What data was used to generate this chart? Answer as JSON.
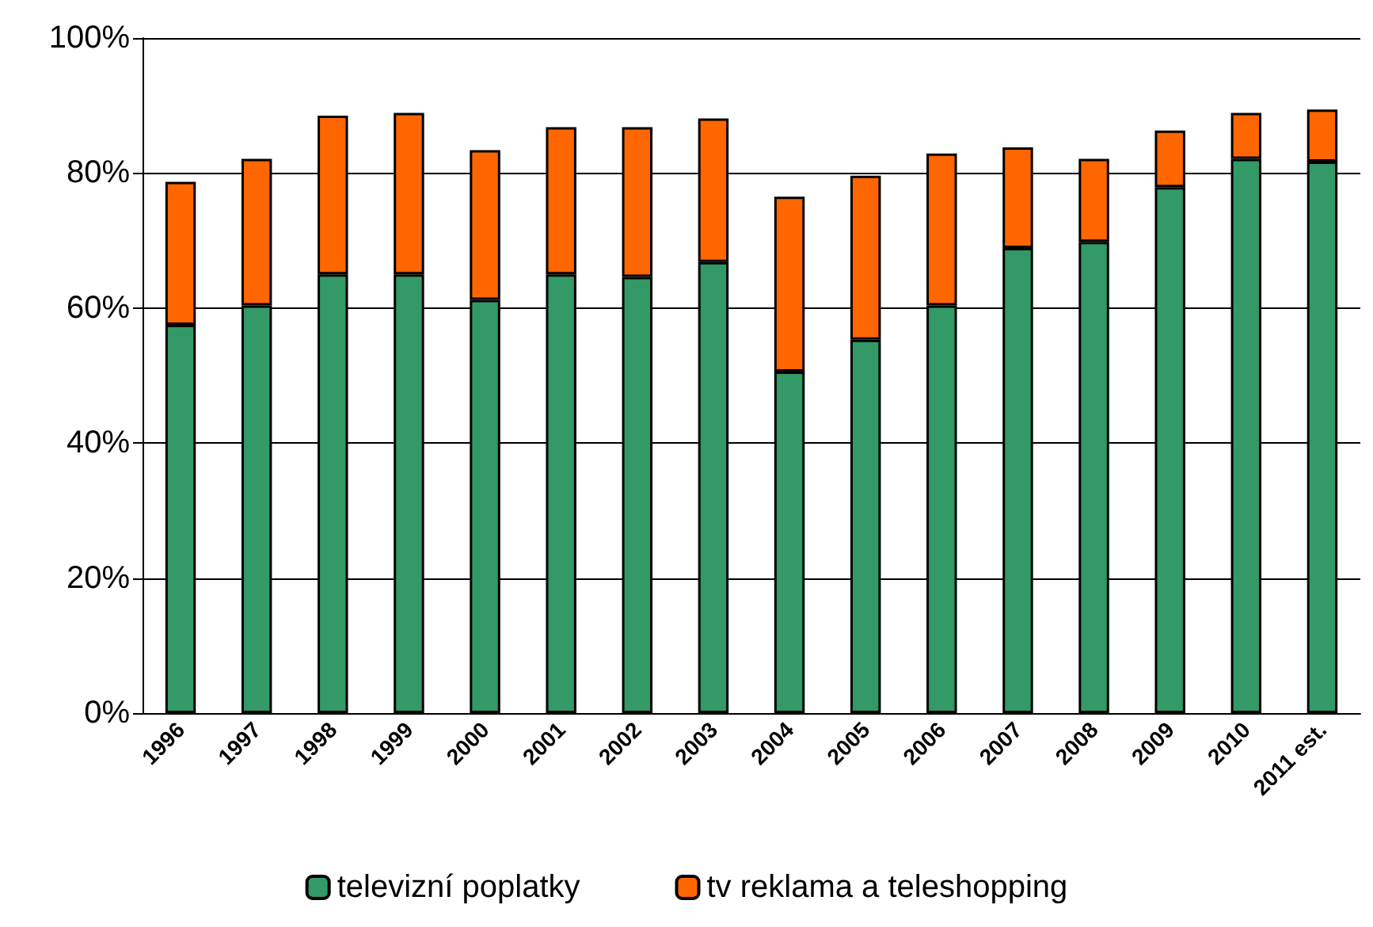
{
  "chart_data": {
    "type": "bar",
    "stacked": true,
    "categories": [
      "1996",
      "1997",
      "1998",
      "1999",
      "2000",
      "2001",
      "2002",
      "2003",
      "2004",
      "2005",
      "2006",
      "2007",
      "2008",
      "2009",
      "2010",
      "2011 est."
    ],
    "series": [
      {
        "name": "televizní poplatky",
        "color": "#339966",
        "values": [
          57.5,
          60.4,
          65.0,
          65.0,
          61.2,
          65.0,
          64.6,
          66.8,
          50.6,
          55.3,
          60.4,
          68.9,
          69.8,
          77.9,
          82.1,
          81.7
        ]
      },
      {
        "name": "tv reklama a teleshopping",
        "color": "#ff6600",
        "values": [
          21.2,
          21.7,
          23.5,
          23.9,
          22.2,
          21.8,
          22.2,
          21.3,
          25.9,
          24.3,
          22.5,
          14.9,
          12.3,
          8.4,
          6.8,
          7.7
        ]
      }
    ],
    "ylim": [
      0,
      100
    ],
    "yticks": [
      {
        "value": 0,
        "label": "0%"
      },
      {
        "value": 20,
        "label": "20%"
      },
      {
        "value": 40,
        "label": "40%"
      },
      {
        "value": 60,
        "label": "60%"
      },
      {
        "value": 80,
        "label": "80%"
      },
      {
        "value": 100,
        "label": "100%"
      }
    ],
    "grid": "y",
    "legend": "bottom"
  }
}
